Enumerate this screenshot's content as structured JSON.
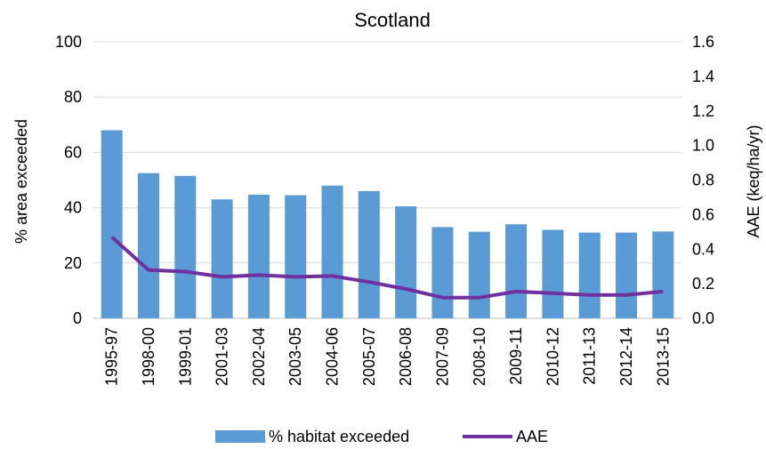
{
  "chart_data": {
    "type": "bar",
    "title": "Scotland",
    "categories": [
      "1995-97",
      "1998-00",
      "1999-01",
      "2001-03",
      "2002-04",
      "2003-05",
      "2004-06",
      "2005-07",
      "2006-08",
      "2007-09",
      "2008-10",
      "2009-11",
      "2010-12",
      "2011-13",
      "2012-14",
      "2013-15"
    ],
    "series": [
      {
        "name": "% habitat exceeded",
        "type": "bar",
        "axis": "left",
        "color": "#5b9bd5",
        "values": [
          68,
          52.5,
          51.5,
          43,
          44.7,
          44.5,
          48,
          46,
          40.5,
          33,
          31.3,
          34,
          32,
          31,
          31,
          31.4
        ]
      },
      {
        "name": "AAE",
        "type": "line",
        "axis": "right",
        "color": "#7030a0",
        "values": [
          0.47,
          0.28,
          0.27,
          0.24,
          0.25,
          0.24,
          0.245,
          0.21,
          0.17,
          0.12,
          0.12,
          0.155,
          0.145,
          0.135,
          0.135,
          0.155
        ]
      }
    ],
    "ylabel": "% area exceeded",
    "ylim": [
      0,
      100
    ],
    "yticks": [
      "0",
      "20",
      "40",
      "60",
      "80",
      "100"
    ],
    "y2label": "AAE (keq/ha/yr)",
    "y2lim": [
      0,
      1.6
    ],
    "y2ticks": [
      "0.0",
      "0.2",
      "0.4",
      "0.6",
      "0.8",
      "1.0",
      "1.2",
      "1.4",
      "1.6"
    ],
    "grid": true,
    "legend": "bottom-center"
  }
}
